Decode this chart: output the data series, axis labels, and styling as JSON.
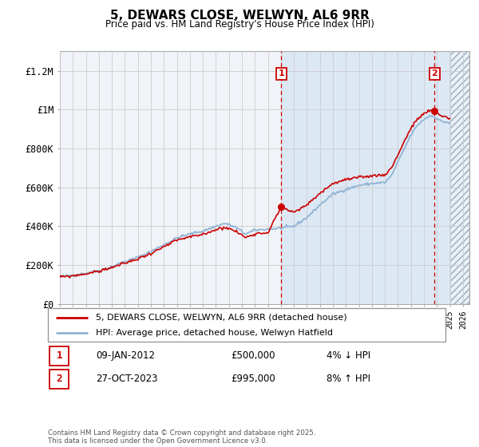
{
  "title": "5, DEWARS CLOSE, WELWYN, AL6 9RR",
  "subtitle": "Price paid vs. HM Land Registry's House Price Index (HPI)",
  "ylabel_ticks": [
    "£0",
    "£200K",
    "£400K",
    "£600K",
    "£800K",
    "£1M",
    "£1.2M"
  ],
  "ytick_values": [
    0,
    200000,
    400000,
    600000,
    800000,
    1000000,
    1200000
  ],
  "ylim": [
    0,
    1300000
  ],
  "xlim_start": 1995.0,
  "xlim_end": 2026.5,
  "hpi_color": "#92b4d4",
  "price_color": "#cc0000",
  "vline_color": "#cc0000",
  "annotation_box_color": "#cc0000",
  "bg_color": "#f0f4f8",
  "bg_color_post_sale1": "#dce8f4",
  "grid_color": "#cccccc",
  "sale1_x": 2012.03,
  "sale1_y": 500000,
  "sale1_label": "1",
  "sale2_x": 2023.82,
  "sale2_y": 995000,
  "sale2_label": "2",
  "legend_line1": "5, DEWARS CLOSE, WELWYN, AL6 9RR (detached house)",
  "legend_line2": "HPI: Average price, detached house, Welwyn Hatfield",
  "annotation1_date": "09-JAN-2012",
  "annotation1_price": "£500,000",
  "annotation1_hpi": "4% ↓ HPI",
  "annotation2_date": "27-OCT-2023",
  "annotation2_price": "£995,000",
  "annotation2_hpi": "8% ↑ HPI",
  "footer": "Contains HM Land Registry data © Crown copyright and database right 2025.\nThis data is licensed under the Open Government Licence v3.0.",
  "hpi_anchors_t": [
    1995.0,
    1996.0,
    1997.0,
    1998.0,
    1999.0,
    2000.0,
    2001.0,
    2002.0,
    2003.0,
    2004.0,
    2005.0,
    2005.5,
    2006.0,
    2007.0,
    2007.7,
    2008.5,
    2009.3,
    2010.0,
    2011.0,
    2012.0,
    2013.0,
    2014.0,
    2015.0,
    2016.0,
    2017.0,
    2018.0,
    2019.0,
    2020.0,
    2020.5,
    2021.0,
    2021.5,
    2022.0,
    2022.5,
    2023.0,
    2023.5,
    2023.9,
    2024.3,
    2024.8,
    2025.0
  ],
  "hpi_anchors_v": [
    140000,
    148000,
    158000,
    172000,
    192000,
    218000,
    240000,
    270000,
    305000,
    340000,
    360000,
    368000,
    375000,
    400000,
    415000,
    395000,
    360000,
    380000,
    385000,
    390000,
    400000,
    445000,
    510000,
    565000,
    590000,
    610000,
    620000,
    625000,
    660000,
    730000,
    800000,
    870000,
    920000,
    950000,
    970000,
    960000,
    940000,
    935000,
    930000
  ],
  "price_anchors_t": [
    1995.0,
    1996.0,
    1997.0,
    1998.0,
    1999.0,
    2000.0,
    2001.0,
    2002.0,
    2003.0,
    2004.0,
    2005.0,
    2005.5,
    2006.0,
    2007.0,
    2007.7,
    2008.5,
    2009.3,
    2010.0,
    2011.0,
    2012.03,
    2013.0,
    2014.0,
    2015.0,
    2016.0,
    2017.0,
    2018.0,
    2019.0,
    2020.0,
    2020.5,
    2021.0,
    2021.5,
    2022.0,
    2022.5,
    2023.0,
    2023.5,
    2023.82,
    2024.3,
    2024.8,
    2025.0
  ],
  "price_anchors_v": [
    138000,
    145000,
    155000,
    168000,
    188000,
    210000,
    232000,
    260000,
    293000,
    328000,
    345000,
    350000,
    358000,
    383000,
    395000,
    375000,
    342000,
    362000,
    368000,
    500000,
    470000,
    510000,
    570000,
    620000,
    640000,
    650000,
    660000,
    665000,
    700000,
    768000,
    838000,
    905000,
    950000,
    980000,
    995000,
    995000,
    970000,
    960000,
    955000
  ]
}
